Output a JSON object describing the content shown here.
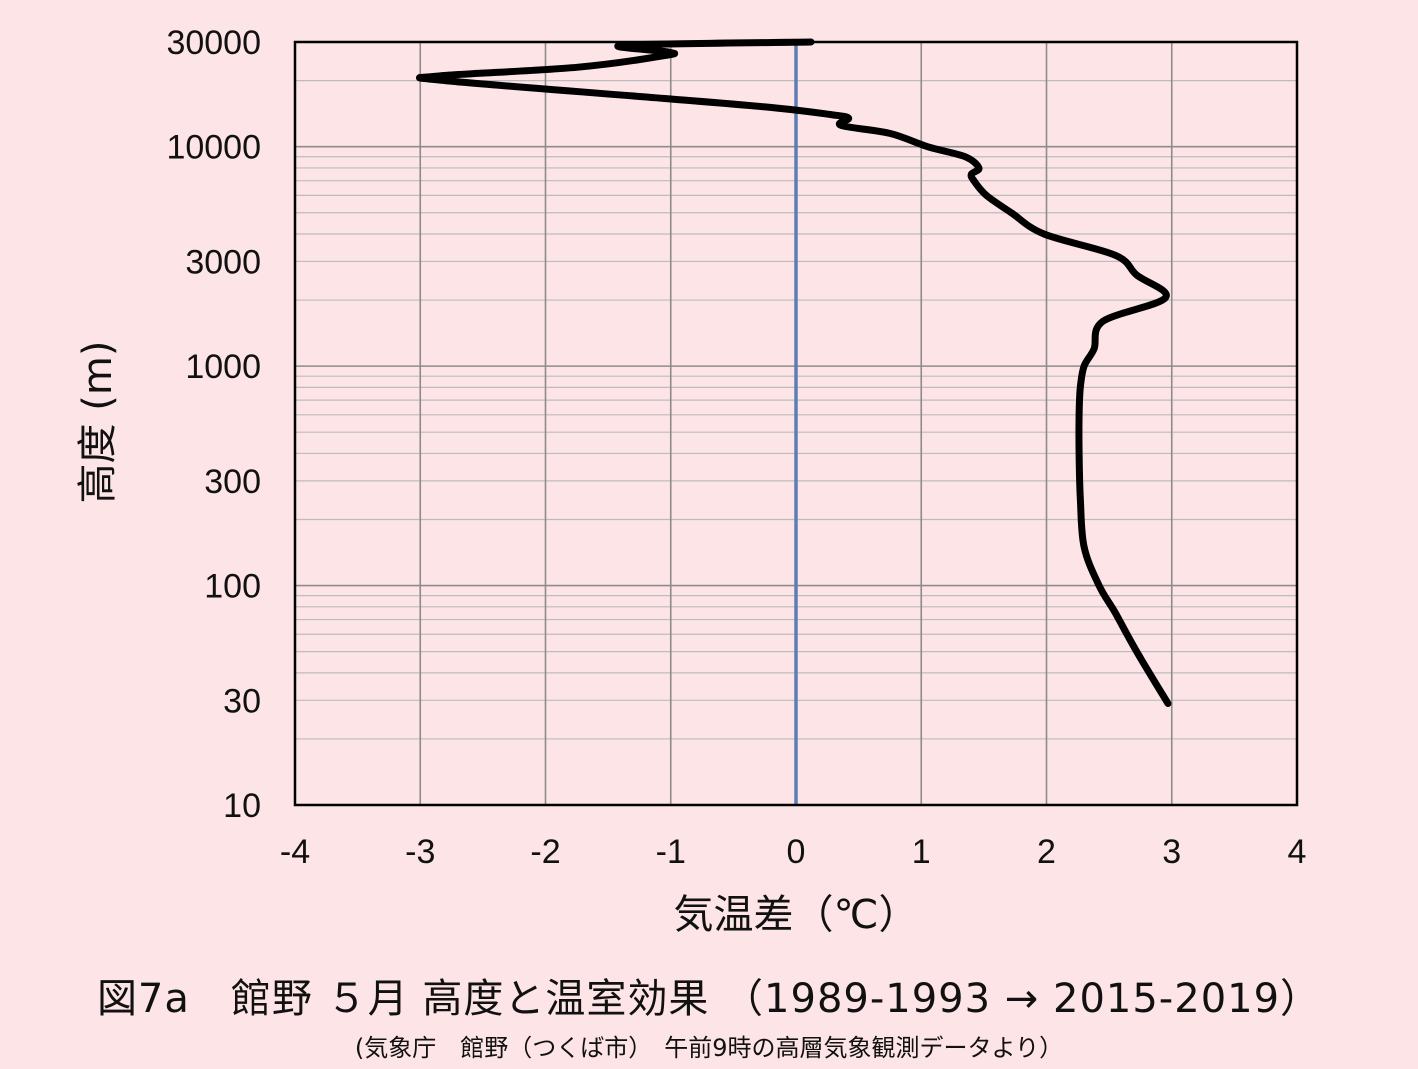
{
  "chart_data": {
    "type": "line",
    "title": "図7a　館野 ５月 高度と温室効果 （1989-1993 → 2015-2019）",
    "subtitle": "(気象庁　館野（つくば市）　午前9時の高層気象観測データより）",
    "xlabel": "気温差（℃）",
    "ylabel": "高度 (m)",
    "xlim": [
      -4,
      4
    ],
    "ylim": [
      10,
      30000
    ],
    "y_scale": "log",
    "grid": true,
    "x_ticks": [
      "-4",
      "-3",
      "-2",
      "-1",
      "0",
      "1",
      "2",
      "3",
      "4"
    ],
    "y_ticks": [
      "10",
      "30",
      "100",
      "300",
      "1000",
      "3000",
      "10000",
      "30000"
    ],
    "zero_line_color": "#5b7fb5",
    "series_color": "#000000",
    "series": [
      {
        "x": [
          2.97,
          2.72,
          2.55,
          2.42,
          2.3,
          2.27,
          2.26,
          2.26,
          2.27,
          2.3,
          2.38,
          2.45,
          2.95,
          2.72,
          2.55,
          1.98,
          1.72,
          1.52,
          1.42,
          1.4,
          1.46,
          1.35,
          1.05,
          0.75,
          0.36,
          0.42,
          0.28,
          -0.15,
          -1.0,
          -2.8,
          -2.85,
          -1.75,
          -1.05,
          -1.02,
          -1.38,
          0.12
        ],
        "y": [
          29,
          50,
          75,
          100,
          150,
          250,
          400,
          600,
          800,
          1000,
          1200,
          1600,
          2050,
          2600,
          3200,
          4000,
          5000,
          6000,
          7000,
          7500,
          8000,
          9000,
          10000,
          11500,
          12500,
          13500,
          14000,
          15000,
          16500,
          20000,
          21000,
          23000,
          26000,
          27000,
          29000,
          30000
        ]
      }
    ]
  }
}
